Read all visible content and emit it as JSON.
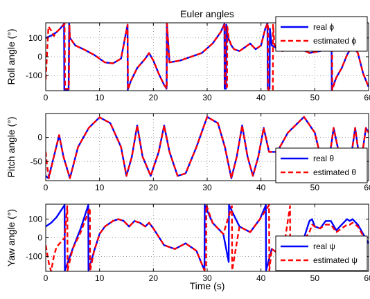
{
  "figure": {
    "title": "Euler angles",
    "xlabel": "Time (s)"
  },
  "chart_data": [
    {
      "type": "line",
      "title": "Euler angles",
      "xlabel": "",
      "ylabel": "Roll angle (°)",
      "xlim": [
        0,
        60
      ],
      "ylim": [
        -180,
        180
      ],
      "xticks": [
        0,
        10,
        20,
        30,
        40,
        50,
        60
      ],
      "yticks": [
        -100,
        0,
        100
      ],
      "grid": true,
      "legend_position": "top-right",
      "series": [
        {
          "name": "real ϕ",
          "color": "#0000ff",
          "style": "solid",
          "x": [
            0,
            1,
            2,
            2.7,
            3.4,
            3.45,
            4.2,
            4.25,
            4.35,
            4.5,
            5.5,
            7,
            9,
            11,
            12.5,
            14,
            14.8,
            15.2,
            15.25,
            15.8,
            17,
            18.5,
            19.2,
            20,
            21,
            22,
            22.45,
            22.5,
            23,
            25,
            27,
            29,
            31,
            32.5,
            33.2,
            33.25,
            33.5,
            33.55,
            33.9,
            34.5,
            35,
            36,
            37,
            38,
            39,
            40,
            40.8,
            41.2,
            41.25,
            41.6,
            41.65,
            42,
            44,
            46,
            47.5,
            49,
            51,
            52.6,
            53.1,
            53.15,
            54,
            55,
            56,
            57,
            58,
            59,
            60
          ],
          "y": [
            100,
            112,
            130,
            150,
            175,
            -175,
            -175,
            -175,
            175,
            100,
            60,
            40,
            10,
            -30,
            -35,
            -10,
            110,
            170,
            -175,
            -130,
            -60,
            -10,
            20,
            -20,
            -90,
            -150,
            -170,
            175,
            -30,
            -20,
            0,
            20,
            70,
            130,
            175,
            -170,
            -170,
            170,
            100,
            60,
            40,
            30,
            50,
            70,
            40,
            60,
            150,
            178,
            -170,
            -170,
            150,
            60,
            30,
            60,
            40,
            20,
            30,
            100,
            175,
            -175,
            -110,
            -60,
            10,
            60,
            20,
            -90,
            -160
          ]
        },
        {
          "name": "estimated ϕ",
          "color": "#ff0000",
          "style": "dashed",
          "x": [
            0,
            0.5,
            1,
            1.5,
            2,
            2.7,
            3.5,
            3.6,
            4.3,
            4.4,
            4.5,
            5.5,
            7,
            9,
            11,
            12.5,
            14,
            14.8,
            15.2,
            15.3,
            15.8,
            17,
            18.5,
            19.2,
            20,
            21,
            22,
            22.5,
            22.55,
            23,
            25,
            27,
            29,
            31,
            32.5,
            33.3,
            33.35,
            33.7,
            33.75,
            34,
            34.5,
            35,
            36,
            37,
            38,
            39,
            40,
            40.8,
            41.3,
            41.35,
            42.2,
            42.25,
            42.5,
            44,
            46,
            47.5,
            49,
            51,
            52.6,
            53.2,
            53.25,
            54,
            55,
            56,
            57,
            58,
            59,
            60
          ],
          "y": [
            -120,
            160,
            140,
            110,
            130,
            150,
            175,
            -170,
            -170,
            170,
            100,
            60,
            40,
            10,
            -30,
            -35,
            -10,
            110,
            170,
            -175,
            -130,
            -60,
            -10,
            20,
            -20,
            -90,
            -150,
            -170,
            175,
            -30,
            -20,
            0,
            20,
            70,
            130,
            175,
            -160,
            -160,
            160,
            100,
            60,
            40,
            30,
            50,
            70,
            40,
            60,
            150,
            178,
            -175,
            -175,
            170,
            60,
            30,
            60,
            40,
            20,
            30,
            100,
            175,
            -175,
            -110,
            -60,
            10,
            60,
            20,
            -90,
            -160
          ]
        }
      ]
    },
    {
      "type": "line",
      "xlabel": "",
      "ylabel": "Pitch angle (°)",
      "xlim": [
        0,
        60
      ],
      "ylim": [
        -90,
        50
      ],
      "xticks": [
        0,
        10,
        20,
        30,
        40,
        50,
        60
      ],
      "yticks": [
        -50,
        0
      ],
      "grid": true,
      "legend_position": "bottom-right",
      "series": [
        {
          "name": "real θ",
          "color": "#0000ff",
          "style": "solid",
          "x": [
            0,
            0.5,
            1.5,
            2.5,
            3.3,
            4.5,
            6,
            8,
            10,
            12,
            14,
            15,
            16,
            17,
            18,
            19.5,
            21,
            22,
            23,
            24.5,
            26,
            28,
            30,
            32,
            33.3,
            34.5,
            35.5,
            36.5,
            37.5,
            38.5,
            39.5,
            40.5,
            41.5,
            43,
            45,
            48,
            50,
            51.5,
            52,
            52.5,
            53.5,
            55,
            55.7,
            56.5,
            57.5,
            58.5,
            59.5,
            60
          ],
          "y": [
            -80,
            -85,
            -40,
            5,
            -40,
            -85,
            -20,
            20,
            42,
            30,
            -20,
            -80,
            -40,
            25,
            -40,
            -80,
            -30,
            25,
            -30,
            -80,
            -75,
            -20,
            43,
            30,
            -20,
            -85,
            -40,
            25,
            -40,
            -80,
            -40,
            20,
            -30,
            -30,
            10,
            43,
            10,
            -60,
            -85,
            -60,
            20,
            -60,
            -80,
            -60,
            20,
            -60,
            20,
            10
          ]
        },
        {
          "name": "estimated θ",
          "color": "#ff0000",
          "style": "dashed",
          "x": [
            0,
            0.2,
            0.6,
            1.5,
            2.5,
            3.3,
            4.5,
            6,
            8,
            10,
            12,
            14,
            15,
            16,
            17,
            18,
            19.5,
            21,
            22,
            23,
            24.5,
            26,
            28,
            30,
            32,
            33.3,
            34.5,
            35.5,
            36.5,
            37.5,
            38.5,
            39.5,
            40.5,
            41.5,
            43,
            45,
            48,
            50,
            51.5,
            52,
            52.5,
            53.5,
            55,
            55.7,
            56.5,
            57.5,
            58.5,
            59.5,
            60
          ],
          "y": [
            -30,
            -55,
            -85,
            -40,
            5,
            -40,
            -85,
            -20,
            20,
            42,
            30,
            -20,
            -80,
            -40,
            25,
            -40,
            -80,
            -30,
            25,
            -30,
            -80,
            -75,
            -20,
            43,
            30,
            -20,
            -85,
            -40,
            25,
            -40,
            -80,
            -40,
            20,
            -30,
            -30,
            10,
            43,
            10,
            -60,
            -85,
            -60,
            20,
            -60,
            -80,
            -60,
            20,
            -60,
            20,
            10
          ]
        }
      ]
    },
    {
      "type": "line",
      "xlabel": "Time (s)",
      "ylabel": "Yaw angle (°)",
      "xlim": [
        0,
        60
      ],
      "ylim": [
        -180,
        180
      ],
      "xticks": [
        0,
        10,
        20,
        30,
        40,
        50,
        60
      ],
      "yticks": [
        -100,
        0,
        100
      ],
      "grid": true,
      "legend_position": "bottom-right",
      "series": [
        {
          "name": "real ψ",
          "color": "#0000ff",
          "style": "solid",
          "x": [
            0,
            1,
            2,
            3.5,
            3.55,
            5,
            6.5,
            7.9,
            7.95,
            9,
            10,
            11,
            12.5,
            13.5,
            14.5,
            15.5,
            16.5,
            17.5,
            18.5,
            19.2,
            20,
            22,
            24,
            26,
            28,
            29.5,
            29.55,
            31,
            33,
            34,
            34.05,
            36,
            38,
            39.8,
            40.9,
            40.95,
            42,
            44,
            45,
            46,
            46.5,
            47.5,
            48,
            49,
            49.5,
            50,
            51,
            52,
            53,
            54,
            55,
            56,
            56.5,
            57,
            58,
            59,
            60
          ],
          "y": [
            60,
            80,
            110,
            175,
            -175,
            -60,
            50,
            175,
            -175,
            -70,
            20,
            60,
            90,
            100,
            90,
            60,
            90,
            80,
            60,
            80,
            50,
            -40,
            -60,
            -30,
            -70,
            -175,
            175,
            80,
            20,
            -130,
            175,
            60,
            30,
            100,
            175,
            -175,
            -60,
            -100,
            -130,
            -150,
            -175,
            -100,
            0,
            90,
            100,
            60,
            50,
            90,
            90,
            40,
            70,
            100,
            90,
            100,
            70,
            20,
            -30
          ]
        },
        {
          "name": "estimated ψ",
          "color": "#ff0000",
          "style": "dashed",
          "x": [
            0,
            0.6,
            1,
            1.5,
            2,
            3.5,
            4,
            4.05,
            5,
            6.5,
            8.2,
            8.25,
            9,
            10,
            11,
            12.5,
            13.5,
            14.5,
            15.5,
            16.5,
            17.5,
            18.5,
            19.2,
            20,
            22,
            24,
            26,
            28,
            29.5,
            29.8,
            29.85,
            31,
            33,
            34.6,
            34.65,
            36,
            38,
            39.8,
            41.5,
            41.55,
            42,
            44,
            45.4,
            45.45,
            46,
            46.5,
            47.5,
            48.2,
            48.25,
            49,
            49.5,
            50,
            51,
            52,
            53,
            54,
            55,
            56,
            56.5,
            57,
            58,
            59,
            60
          ],
          "y": [
            -40,
            -140,
            -180,
            -100,
            -50,
            0,
            170,
            -175,
            -60,
            30,
            160,
            -175,
            -70,
            20,
            60,
            90,
            100,
            90,
            60,
            90,
            80,
            60,
            80,
            50,
            -40,
            -60,
            -30,
            -70,
            -175,
            -150,
            175,
            80,
            20,
            170,
            -175,
            60,
            30,
            100,
            175,
            -175,
            -60,
            -100,
            170,
            -175,
            -100,
            -60,
            -20,
            10,
            0,
            30,
            70,
            60,
            50,
            70,
            70,
            30,
            50,
            70,
            70,
            80,
            60,
            10,
            -30
          ]
        }
      ]
    }
  ]
}
